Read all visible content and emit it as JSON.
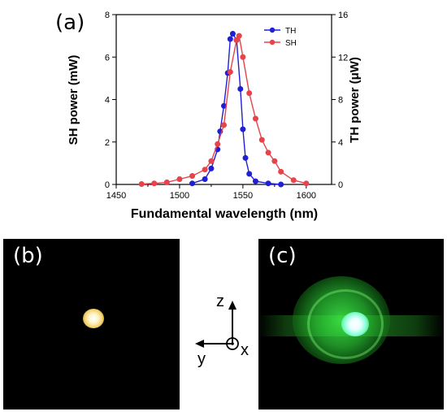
{
  "chart_data": {
    "type": "line",
    "xlabel": "Fundamental wavelength (nm)",
    "ylabel_left": "SH power (mW)",
    "ylabel_right": "TH power (μW)",
    "xlim": [
      1450,
      1620
    ],
    "ylim_left": [
      0,
      8
    ],
    "ylim_right": [
      0,
      16
    ],
    "x_ticks": [
      1450,
      1500,
      1550,
      1600
    ],
    "y_ticks_left": [
      0,
      2,
      4,
      6,
      8
    ],
    "y_ticks_right": [
      0,
      4,
      8,
      12,
      16
    ],
    "legend_position": "top-right",
    "series": [
      {
        "name": "TH",
        "color": "#1f1fd6",
        "axis": "right",
        "x": [
          1510,
          1520,
          1525,
          1530,
          1532,
          1535,
          1538,
          1540,
          1542,
          1545,
          1548,
          1550,
          1552,
          1555,
          1560,
          1570,
          1580
        ],
        "y": [
          0.1,
          0.5,
          1.5,
          3.3,
          5.0,
          7.4,
          10.5,
          13.7,
          14.2,
          13.6,
          9.0,
          5.2,
          2.5,
          1.0,
          0.3,
          0.1,
          0.0
        ]
      },
      {
        "name": "SH",
        "color": "#e8424a",
        "axis": "left",
        "x": [
          1470,
          1480,
          1490,
          1500,
          1510,
          1520,
          1525,
          1530,
          1535,
          1540,
          1545,
          1547,
          1550,
          1555,
          1560,
          1565,
          1570,
          1575,
          1580,
          1590,
          1600
        ],
        "y": [
          0.02,
          0.05,
          0.1,
          0.25,
          0.4,
          0.7,
          1.1,
          1.9,
          2.8,
          5.3,
          6.8,
          7.0,
          6.0,
          4.3,
          3.1,
          2.1,
          1.5,
          1.1,
          0.6,
          0.2,
          0.05
        ]
      }
    ]
  },
  "panels": {
    "a": "(a)",
    "b": "(b)",
    "c": "(c)"
  },
  "axes_diagram": {
    "z": "z",
    "y": "y",
    "x": "x"
  }
}
